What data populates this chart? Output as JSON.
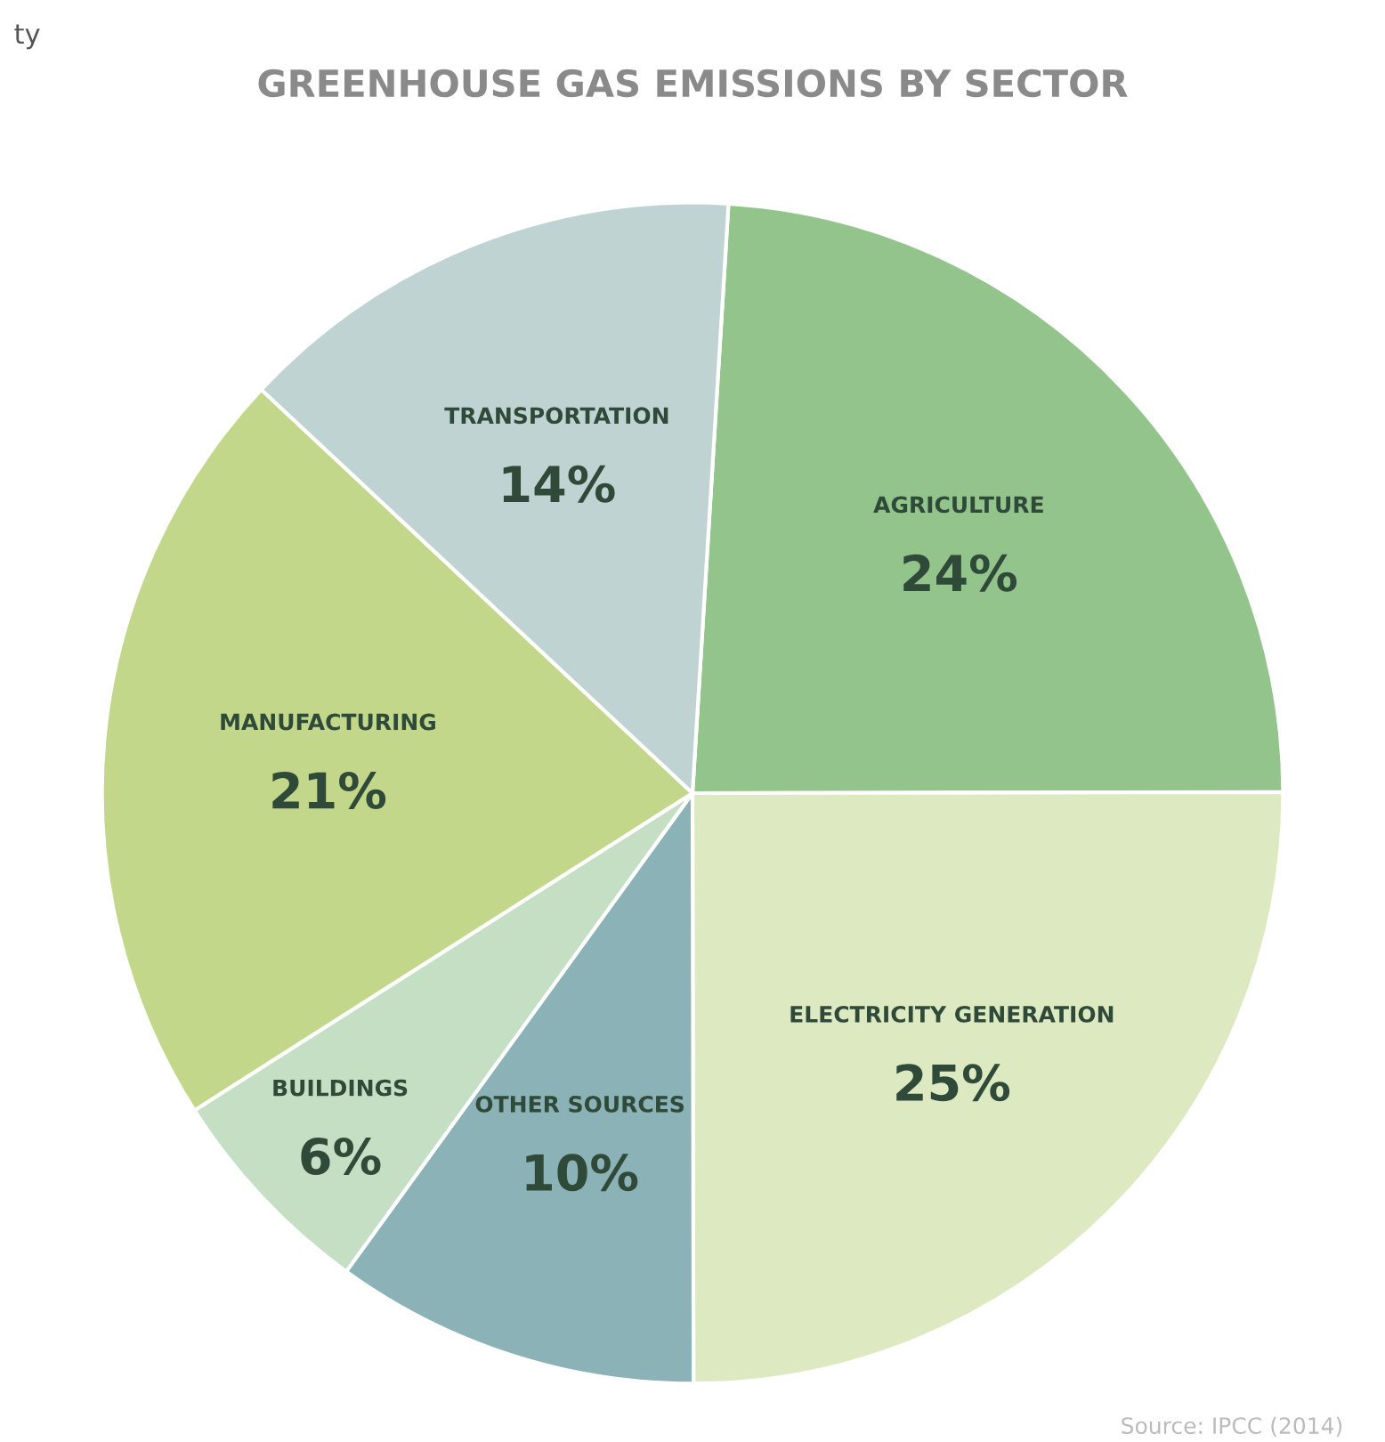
{
  "chart_data": {
    "type": "pie",
    "title": "GREENHOUSE GAS EMISSIONS BY SECTOR",
    "categories": [
      "AGRICULTURE",
      "ELECTRICITY GENERATION",
      "OTHER SOURCES",
      "BUILDINGS",
      "MANUFACTURING",
      "TRANSPORTATION"
    ],
    "values": [
      24,
      25,
      10,
      6,
      21,
      14
    ],
    "value_labels": [
      "24%",
      "25%",
      "10%",
      "6%",
      "21%",
      "14%"
    ],
    "colors": [
      "#93c48b",
      "#dde9c1",
      "#8bb2b6",
      "#c5dfc4",
      "#c3d78a",
      "#c0d3d3"
    ],
    "annotations": [
      "ty",
      "Source: IPCC (2014)"
    ],
    "legend": false
  }
}
